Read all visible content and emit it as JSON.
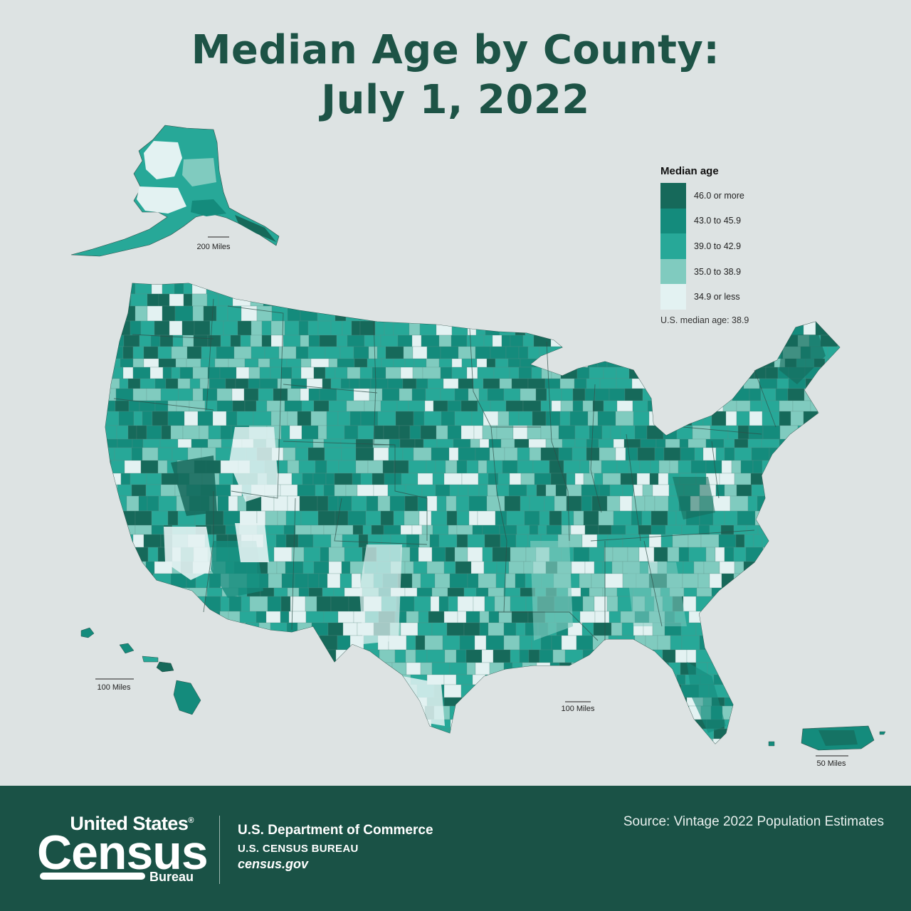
{
  "title": {
    "line1": "Median Age by County:",
    "line2": "July 1, 2022"
  },
  "legend": {
    "title": "Median age",
    "classes": [
      {
        "label": "46.0 or more",
        "color": "#16695a"
      },
      {
        "label": "43.0 to 45.9",
        "color": "#148b7c"
      },
      {
        "label": "39.0 to 42.9",
        "color": "#27a898"
      },
      {
        "label": "35.0 to 38.9",
        "color": "#80cbbf"
      },
      {
        "label": "34.9 or less",
        "color": "#e3f2f2"
      }
    ],
    "us_median": "U.S. median age: 38.9"
  },
  "scales": {
    "alaska": "200 Miles",
    "hawaii": "100 Miles",
    "conus": "100 Miles",
    "puerto_rico": "50 Miles"
  },
  "footer": {
    "logo_line1": "United States",
    "logo_registered": "®",
    "logo_line2": "Census",
    "logo_line3": "Bureau",
    "department": "U.S. Department of Commerce",
    "bureau": "U.S. CENSUS BUREAU",
    "website": "census.gov",
    "source": "Source: Vintage 2022 Population Estimates"
  },
  "colors": {
    "background": "#dde3e3",
    "title": "#1d5346",
    "footer": "#1a5246",
    "border": "#2f4f48"
  }
}
